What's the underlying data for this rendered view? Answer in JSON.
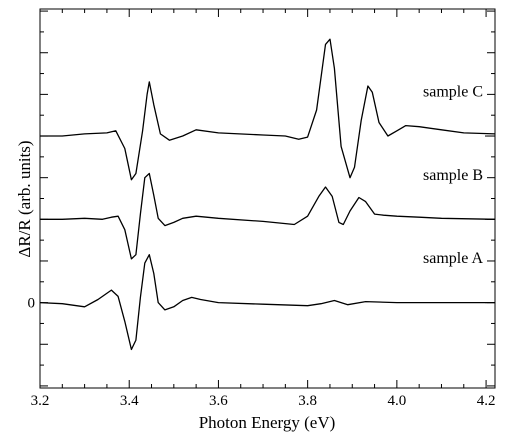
{
  "chart_data": {
    "type": "line",
    "title": "",
    "xlabel": "Photon Energy (eV)",
    "ylabel": "ΔR/R (arb. units)",
    "xlim": [
      3.2,
      4.22
    ],
    "ylim": [
      -8.2,
      28.2
    ],
    "grid": false,
    "legend": "none",
    "x_ticks": [
      3.2,
      3.4,
      3.6,
      3.8,
      4.0,
      4.2
    ],
    "x_tick_labels": [
      "3.2",
      "3.4",
      "3.6",
      "3.8",
      "4.0",
      "4.2"
    ],
    "y_tick_labels": [
      {
        "value": 0,
        "label": "0"
      }
    ],
    "line_color": "#000000",
    "series": [
      {
        "name": "sample A",
        "offset": 0,
        "points": [
          [
            3.2,
            0
          ],
          [
            3.25,
            -0.1
          ],
          [
            3.3,
            -0.4
          ],
          [
            3.33,
            0.3
          ],
          [
            3.36,
            1.2
          ],
          [
            3.375,
            0.6
          ],
          [
            3.39,
            -1.8
          ],
          [
            3.405,
            -4.5
          ],
          [
            3.415,
            -3.6
          ],
          [
            3.425,
            0.5
          ],
          [
            3.435,
            3.8
          ],
          [
            3.445,
            4.6
          ],
          [
            3.455,
            2.8
          ],
          [
            3.465,
            0
          ],
          [
            3.48,
            -0.7
          ],
          [
            3.5,
            -0.4
          ],
          [
            3.52,
            0.2
          ],
          [
            3.54,
            0.5
          ],
          [
            3.56,
            0.3
          ],
          [
            3.6,
            0
          ],
          [
            3.7,
            -0.15
          ],
          [
            3.8,
            -0.3
          ],
          [
            3.83,
            -0.1
          ],
          [
            3.86,
            0.2
          ],
          [
            3.89,
            -0.2
          ],
          [
            3.93,
            0.1
          ],
          [
            4.0,
            0
          ],
          [
            4.1,
            0
          ],
          [
            4.22,
            0
          ]
        ]
      },
      {
        "name": "sample B",
        "offset": 8,
        "points": [
          [
            3.2,
            0
          ],
          [
            3.25,
            0
          ],
          [
            3.3,
            0.1
          ],
          [
            3.34,
            0
          ],
          [
            3.36,
            0.2
          ],
          [
            3.375,
            0.3
          ],
          [
            3.39,
            -1
          ],
          [
            3.405,
            -3.8
          ],
          [
            3.415,
            -3.4
          ],
          [
            3.425,
            0.5
          ],
          [
            3.435,
            4
          ],
          [
            3.445,
            4.4
          ],
          [
            3.455,
            2.3
          ],
          [
            3.465,
            0.1
          ],
          [
            3.48,
            -0.6
          ],
          [
            3.5,
            -0.3
          ],
          [
            3.52,
            0.1
          ],
          [
            3.55,
            0.3
          ],
          [
            3.6,
            0.1
          ],
          [
            3.7,
            -0.2
          ],
          [
            3.77,
            -0.5
          ],
          [
            3.8,
            0.3
          ],
          [
            3.825,
            2.2
          ],
          [
            3.84,
            3.1
          ],
          [
            3.855,
            2.2
          ],
          [
            3.87,
            -0.3
          ],
          [
            3.88,
            -0.5
          ],
          [
            3.895,
            0.8
          ],
          [
            3.915,
            2.1
          ],
          [
            3.93,
            1.7
          ],
          [
            3.95,
            0.5
          ],
          [
            3.97,
            0.4
          ],
          [
            4.0,
            0.3
          ],
          [
            4.05,
            0.2
          ],
          [
            4.1,
            0.1
          ],
          [
            4.22,
            0
          ]
        ]
      },
      {
        "name": "sample C",
        "offset": 16,
        "points": [
          [
            3.2,
            0
          ],
          [
            3.25,
            0
          ],
          [
            3.3,
            0.2
          ],
          [
            3.35,
            0.3
          ],
          [
            3.37,
            0.5
          ],
          [
            3.39,
            -1.2
          ],
          [
            3.405,
            -4.2
          ],
          [
            3.415,
            -3.6
          ],
          [
            3.43,
            0.5
          ],
          [
            3.44,
            4
          ],
          [
            3.445,
            5.2
          ],
          [
            3.455,
            3
          ],
          [
            3.47,
            0.2
          ],
          [
            3.49,
            -0.4
          ],
          [
            3.52,
            0
          ],
          [
            3.55,
            0.6
          ],
          [
            3.6,
            0.3
          ],
          [
            3.7,
            0.1
          ],
          [
            3.75,
            0
          ],
          [
            3.78,
            -0.3
          ],
          [
            3.8,
            -0.1
          ],
          [
            3.82,
            2.5
          ],
          [
            3.84,
            8.8
          ],
          [
            3.85,
            9.3
          ],
          [
            3.86,
            6.5
          ],
          [
            3.875,
            -1
          ],
          [
            3.895,
            -4
          ],
          [
            3.905,
            -3
          ],
          [
            3.92,
            1.5
          ],
          [
            3.935,
            4.8
          ],
          [
            3.945,
            4.2
          ],
          [
            3.96,
            1.3
          ],
          [
            3.98,
            0
          ],
          [
            4.0,
            0.5
          ],
          [
            4.02,
            1
          ],
          [
            4.05,
            0.9
          ],
          [
            4.1,
            0.6
          ],
          [
            4.15,
            0.3
          ],
          [
            4.22,
            0.2
          ]
        ]
      }
    ]
  }
}
